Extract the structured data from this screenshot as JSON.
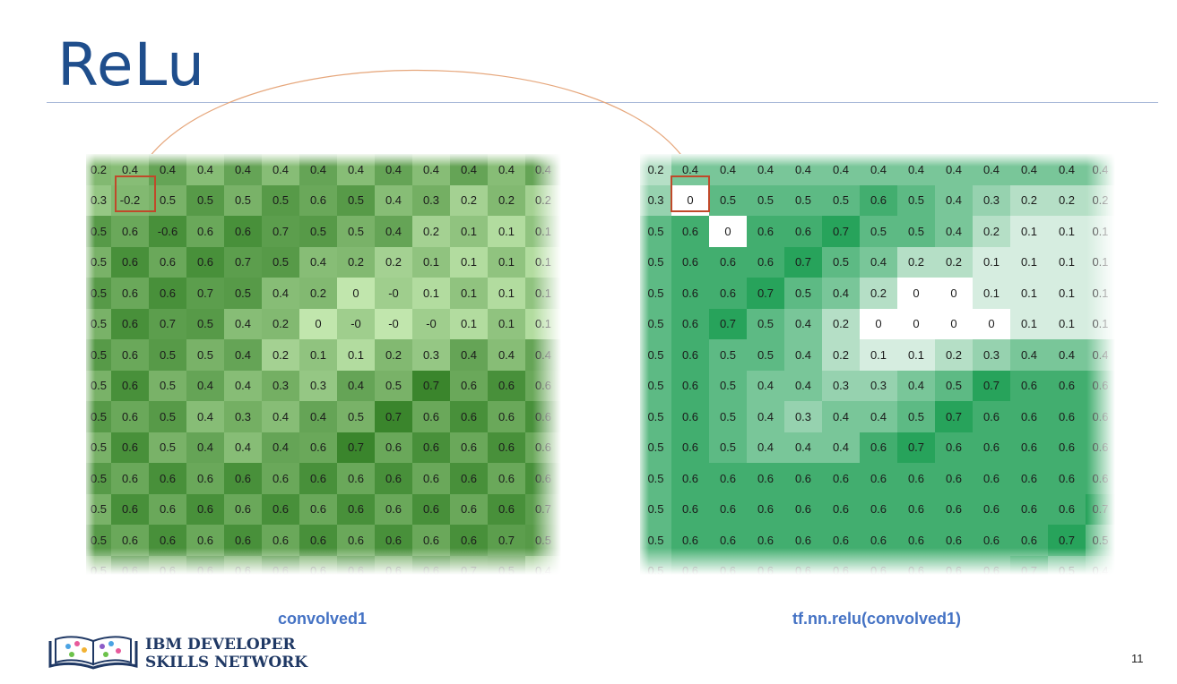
{
  "slide": {
    "title": "ReLu",
    "page_number": "11"
  },
  "logo": {
    "line1": "IBM DEVELOPER",
    "line2": "SKILLS NETWORK"
  },
  "matrices": [
    {
      "caption": "convolved1",
      "highlight": {
        "row": 1,
        "col": 1
      },
      "rows": [
        [
          "0.2",
          "0.4",
          "0.4",
          "0.4",
          "0.4",
          "0.4",
          "0.4",
          "0.4",
          "0.4",
          "0.4",
          "0.4",
          "0.4",
          "0.4"
        ],
        [
          "0.3",
          "-0.2",
          "0.5",
          "0.5",
          "0.5",
          "0.5",
          "0.6",
          "0.5",
          "0.4",
          "0.3",
          "0.2",
          "0.2",
          "0.2"
        ],
        [
          "0.5",
          "0.6",
          "-0.6",
          "0.6",
          "0.6",
          "0.7",
          "0.5",
          "0.5",
          "0.4",
          "0.2",
          "0.1",
          "0.1",
          "0.1"
        ],
        [
          "0.5",
          "0.6",
          "0.6",
          "0.6",
          "0.7",
          "0.5",
          "0.4",
          "0.2",
          "0.2",
          "0.1",
          "0.1",
          "0.1",
          "0.1"
        ],
        [
          "0.5",
          "0.6",
          "0.6",
          "0.7",
          "0.5",
          "0.4",
          "0.2",
          "0",
          "-0",
          "0.1",
          "0.1",
          "0.1",
          "0.1"
        ],
        [
          "0.5",
          "0.6",
          "0.7",
          "0.5",
          "0.4",
          "0.2",
          "0",
          "-0",
          "-0",
          "-0",
          "0.1",
          "0.1",
          "0.1"
        ],
        [
          "0.5",
          "0.6",
          "0.5",
          "0.5",
          "0.4",
          "0.2",
          "0.1",
          "0.1",
          "0.2",
          "0.3",
          "0.4",
          "0.4",
          "0.4"
        ],
        [
          "0.5",
          "0.6",
          "0.5",
          "0.4",
          "0.4",
          "0.3",
          "0.3",
          "0.4",
          "0.5",
          "0.7",
          "0.6",
          "0.6",
          "0.6"
        ],
        [
          "0.5",
          "0.6",
          "0.5",
          "0.4",
          "0.3",
          "0.4",
          "0.4",
          "0.5",
          "0.7",
          "0.6",
          "0.6",
          "0.6",
          "0.6"
        ],
        [
          "0.5",
          "0.6",
          "0.5",
          "0.4",
          "0.4",
          "0.4",
          "0.6",
          "0.7",
          "0.6",
          "0.6",
          "0.6",
          "0.6",
          "0.6"
        ],
        [
          "0.5",
          "0.6",
          "0.6",
          "0.6",
          "0.6",
          "0.6",
          "0.6",
          "0.6",
          "0.6",
          "0.6",
          "0.6",
          "0.6",
          "0.6"
        ],
        [
          "0.5",
          "0.6",
          "0.6",
          "0.6",
          "0.6",
          "0.6",
          "0.6",
          "0.6",
          "0.6",
          "0.6",
          "0.6",
          "0.6",
          "0.7"
        ],
        [
          "0.5",
          "0.6",
          "0.6",
          "0.6",
          "0.6",
          "0.6",
          "0.6",
          "0.6",
          "0.6",
          "0.6",
          "0.6",
          "0.7",
          "0.5"
        ],
        [
          "0.5",
          "0.6",
          "0.6",
          "0.6",
          "0.6",
          "0.6",
          "0.6",
          "0.6",
          "0.6",
          "0.6",
          "0.7",
          "0.5",
          "0.4"
        ]
      ]
    },
    {
      "caption": "tf.nn.relu(convolved1)",
      "highlight": {
        "row": 1,
        "col": 1
      },
      "rows": [
        [
          "0.2",
          "0.4",
          "0.4",
          "0.4",
          "0.4",
          "0.4",
          "0.4",
          "0.4",
          "0.4",
          "0.4",
          "0.4",
          "0.4",
          "0.4"
        ],
        [
          "0.3",
          "0",
          "0.5",
          "0.5",
          "0.5",
          "0.5",
          "0.6",
          "0.5",
          "0.4",
          "0.3",
          "0.2",
          "0.2",
          "0.2"
        ],
        [
          "0.5",
          "0.6",
          "0",
          "0.6",
          "0.6",
          "0.7",
          "0.5",
          "0.5",
          "0.4",
          "0.2",
          "0.1",
          "0.1",
          "0.1"
        ],
        [
          "0.5",
          "0.6",
          "0.6",
          "0.6",
          "0.7",
          "0.5",
          "0.4",
          "0.2",
          "0.2",
          "0.1",
          "0.1",
          "0.1",
          "0.1"
        ],
        [
          "0.5",
          "0.6",
          "0.6",
          "0.7",
          "0.5",
          "0.4",
          "0.2",
          "0",
          "0",
          "0.1",
          "0.1",
          "0.1",
          "0.1"
        ],
        [
          "0.5",
          "0.6",
          "0.7",
          "0.5",
          "0.4",
          "0.2",
          "0",
          "0",
          "0",
          "0",
          "0.1",
          "0.1",
          "0.1"
        ],
        [
          "0.5",
          "0.6",
          "0.5",
          "0.5",
          "0.4",
          "0.2",
          "0.1",
          "0.1",
          "0.2",
          "0.3",
          "0.4",
          "0.4",
          "0.4"
        ],
        [
          "0.5",
          "0.6",
          "0.5",
          "0.4",
          "0.4",
          "0.3",
          "0.3",
          "0.4",
          "0.5",
          "0.7",
          "0.6",
          "0.6",
          "0.6"
        ],
        [
          "0.5",
          "0.6",
          "0.5",
          "0.4",
          "0.3",
          "0.4",
          "0.4",
          "0.5",
          "0.7",
          "0.6",
          "0.6",
          "0.6",
          "0.6"
        ],
        [
          "0.5",
          "0.6",
          "0.5",
          "0.4",
          "0.4",
          "0.4",
          "0.6",
          "0.7",
          "0.6",
          "0.6",
          "0.6",
          "0.6",
          "0.6"
        ],
        [
          "0.5",
          "0.6",
          "0.6",
          "0.6",
          "0.6",
          "0.6",
          "0.6",
          "0.6",
          "0.6",
          "0.6",
          "0.6",
          "0.6",
          "0.6"
        ],
        [
          "0.5",
          "0.6",
          "0.6",
          "0.6",
          "0.6",
          "0.6",
          "0.6",
          "0.6",
          "0.6",
          "0.6",
          "0.6",
          "0.6",
          "0.7"
        ],
        [
          "0.5",
          "0.6",
          "0.6",
          "0.6",
          "0.6",
          "0.6",
          "0.6",
          "0.6",
          "0.6",
          "0.6",
          "0.6",
          "0.7",
          "0.5"
        ],
        [
          "0.5",
          "0.6",
          "0.6",
          "0.6",
          "0.6",
          "0.6",
          "0.6",
          "0.6",
          "0.6",
          "0.6",
          "0.7",
          "0.5",
          "0.4"
        ]
      ]
    }
  ],
  "colors": {
    "title": "#1f4e8c",
    "caption": "#4472c4",
    "highlight": "#c0492a",
    "arc": "#e6a77c",
    "left_light": "#c8ebb4",
    "left_dark": "#2e7d21",
    "right_light": "#ffffff",
    "right_dark": "#27a35b"
  }
}
